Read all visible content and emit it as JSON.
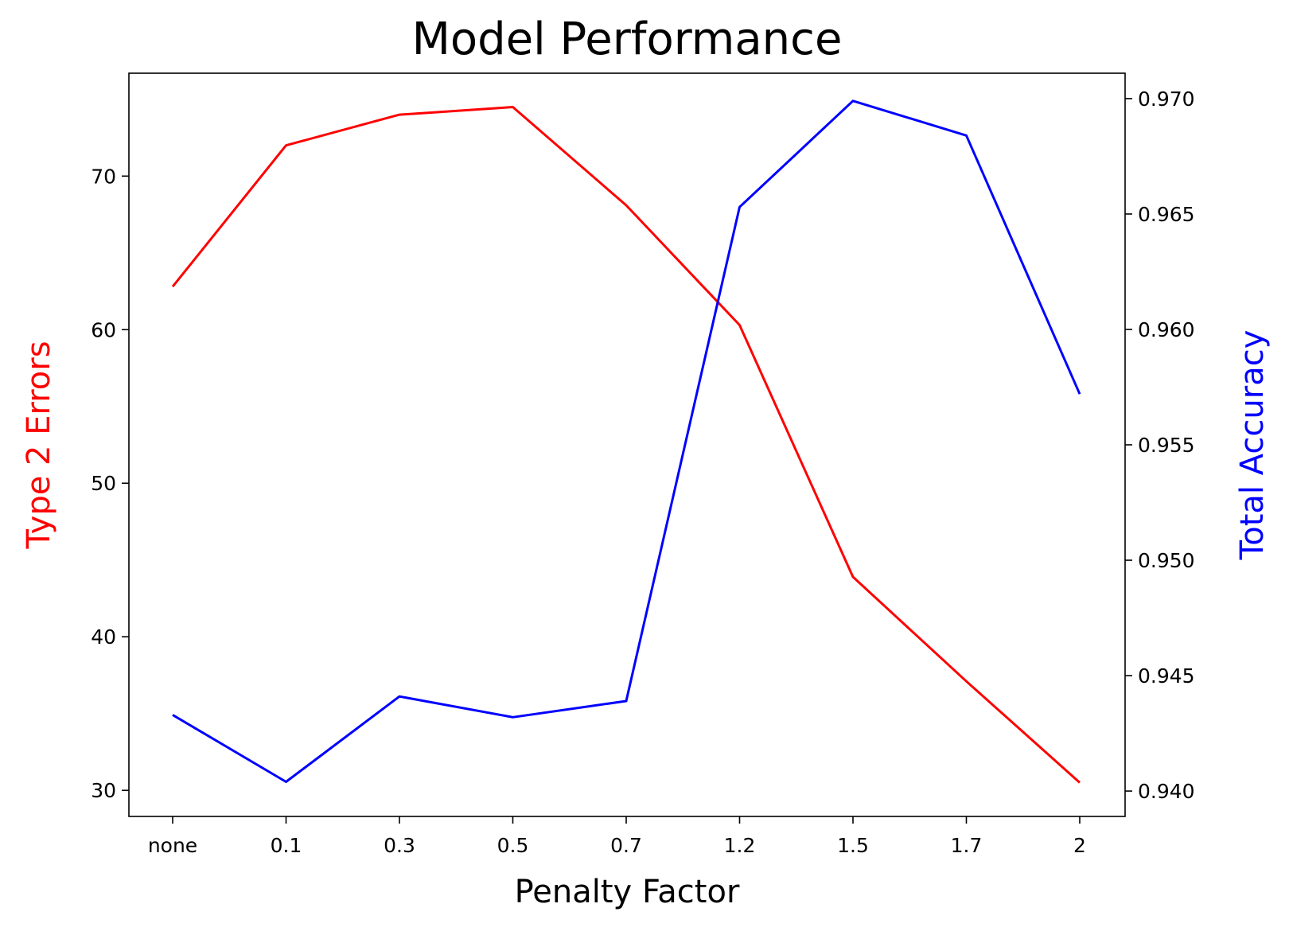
{
  "chart_data": {
    "type": "line",
    "title": "Model Performance",
    "xlabel": "Penalty Factor",
    "categories": [
      "none",
      "0.1",
      "0.3",
      "0.5",
      "0.7",
      "1.2",
      "1.5",
      "1.7",
      "2"
    ],
    "y_left": {
      "label": "Type 2 Errors",
      "color": "#ff0000",
      "ylim": [
        28.3,
        76.7
      ],
      "ticks": [
        "30",
        "40",
        "50",
        "60",
        "70"
      ]
    },
    "y_right": {
      "label": "Total Accuracy",
      "color": "#0000ff",
      "ylim": [
        0.9389,
        0.9711
      ],
      "ticks": [
        "0.940",
        "0.945",
        "0.950",
        "0.955",
        "0.960",
        "0.965",
        "0.970"
      ]
    },
    "series": [
      {
        "axis": "left",
        "color": "#ff0000",
        "values": [
          62.8,
          72.0,
          74.0,
          74.5,
          68.1,
          60.3,
          43.9,
          37.1,
          30.5
        ]
      },
      {
        "axis": "right",
        "color": "#0000ff",
        "values": [
          0.9433,
          0.9404,
          0.9441,
          0.9432,
          0.9439,
          0.9653,
          0.9699,
          0.9684,
          0.9572
        ]
      }
    ],
    "grid": false
  }
}
